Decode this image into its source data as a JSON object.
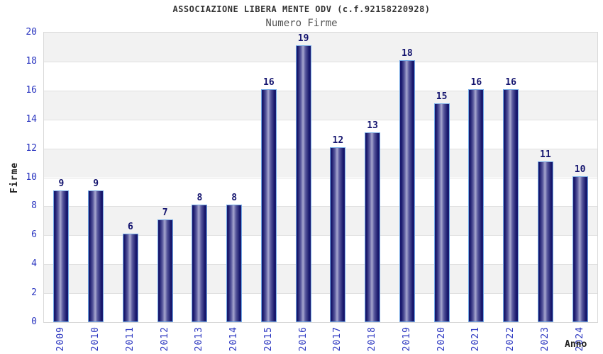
{
  "chart_data": {
    "type": "bar",
    "title": "ASSOCIAZIONE LIBERA MENTE ODV (c.f.92158220928)",
    "subtitle": "Numero Firme",
    "xlabel": "Anno",
    "ylabel": "Firme",
    "categories": [
      "2009",
      "2010",
      "2011",
      "2012",
      "2013",
      "2014",
      "2015",
      "2016",
      "2017",
      "2018",
      "2019",
      "2020",
      "2021",
      "2022",
      "2023",
      "2024"
    ],
    "values": [
      9,
      9,
      6,
      7,
      8,
      8,
      16,
      19,
      12,
      13,
      18,
      15,
      16,
      16,
      11,
      10
    ],
    "ylim": [
      0,
      20
    ],
    "ytick_step": 2,
    "yticks": [
      0,
      2,
      4,
      6,
      8,
      10,
      12,
      14,
      16,
      18,
      20
    ],
    "grid": "on",
    "legend": "none",
    "band_fill": "alternating horizontal stripes every 2 units",
    "colors": {
      "background": "#ffffff",
      "title": "#333333",
      "subtitle": "#555555",
      "axis_label": "#222222",
      "tick_label": "#2a35c0",
      "value_label": "#13136e",
      "bar_dark": "#1c1c72",
      "bar_darker": "#15156a",
      "bar_mid": "#5a5a9e",
      "bar_light": "#a6a6cf",
      "bar_edge": "#74aae6",
      "band": "#f2f2f2",
      "grid": "#e0e0e0",
      "plot_border": "#d9d9d9"
    }
  }
}
